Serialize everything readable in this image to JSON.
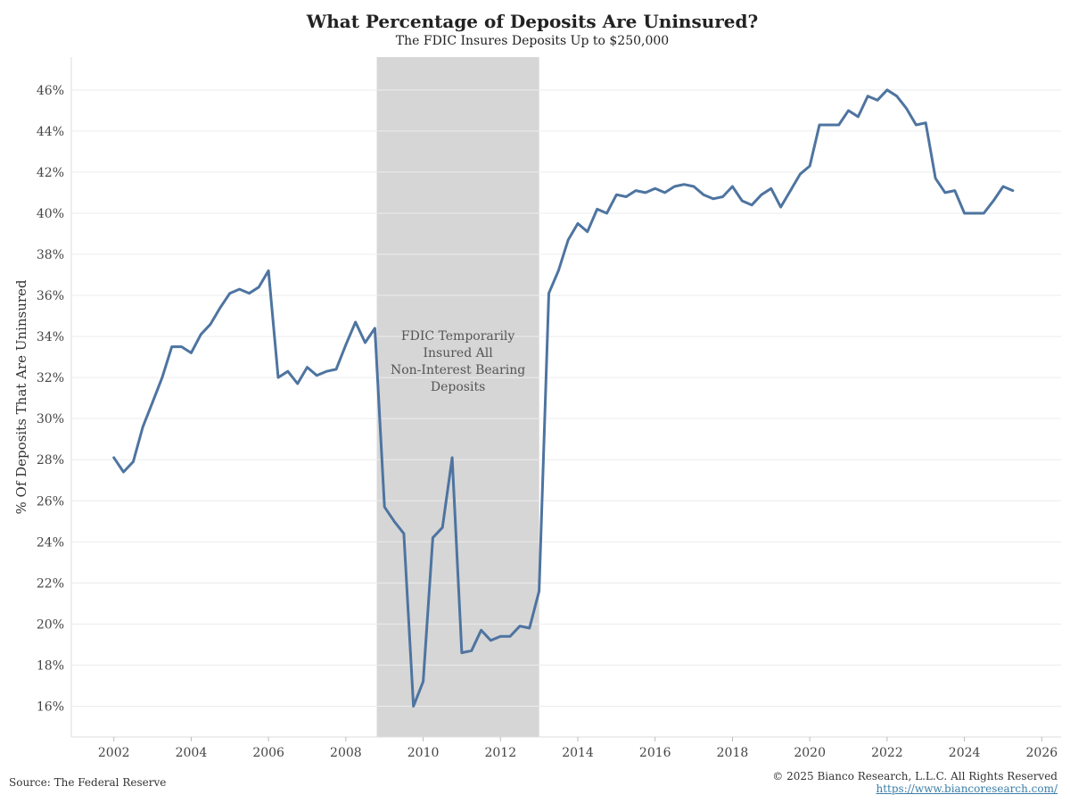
{
  "chart_data": {
    "type": "line",
    "title": "What Percentage of Deposits Are Uninsured?",
    "subtitle": "The FDIC Insures Deposits Up to $250,000",
    "ylabel": "% Of Deposits That Are Uninsured",
    "xlabel": "",
    "xlim": [
      2000.9,
      2026.5
    ],
    "ylim": [
      14.5,
      47.6
    ],
    "x_ticks": [
      2002,
      2004,
      2006,
      2008,
      2010,
      2012,
      2014,
      2016,
      2018,
      2020,
      2022,
      2024,
      2026
    ],
    "x_tick_labels": [
      "2002",
      "2004",
      "2006",
      "2008",
      "2010",
      "2012",
      "2014",
      "2016",
      "2018",
      "2020",
      "2022",
      "2024",
      "2026"
    ],
    "y_ticks": [
      16,
      18,
      20,
      22,
      24,
      26,
      28,
      30,
      32,
      34,
      36,
      38,
      40,
      42,
      44,
      46
    ],
    "y_tick_labels": [
      "16%",
      "18%",
      "20%",
      "22%",
      "24%",
      "26%",
      "28%",
      "30%",
      "32%",
      "34%",
      "36%",
      "38%",
      "40%",
      "42%",
      "44%",
      "46%"
    ],
    "grid": "horizontal",
    "line_color": "#4e74a0",
    "shade_color": "#d6d6d6",
    "shaded_region": {
      "x_start": 2008.8,
      "x_end": 2013.0,
      "label": [
        "FDIC Temporarily",
        "Insured All",
        "Non-Interest Bearing",
        "Deposits"
      ]
    },
    "series": [
      {
        "x": [
          2002.0,
          2002.25,
          2002.5,
          2002.75,
          2003.0,
          2003.25,
          2003.5,
          2003.75,
          2004.0,
          2004.25,
          2004.5,
          2004.75,
          2005.0,
          2005.25,
          2005.5,
          2005.75,
          2006.0,
          2006.25,
          2006.5,
          2006.75,
          2007.0,
          2007.25,
          2007.5,
          2007.75,
          2008.0,
          2008.25,
          2008.5,
          2008.75,
          2009.0,
          2009.25,
          2009.5,
          2009.75,
          2010.0,
          2010.25,
          2010.5,
          2010.75,
          2011.0,
          2011.25,
          2011.5,
          2011.75,
          2012.0,
          2012.25,
          2012.5,
          2012.75,
          2013.0,
          2013.25,
          2013.5,
          2013.75,
          2014.0,
          2014.25,
          2014.5,
          2014.75,
          2015.0,
          2015.25,
          2015.5,
          2015.75,
          2016.0,
          2016.25,
          2016.5,
          2016.75,
          2017.0,
          2017.25,
          2017.5,
          2017.75,
          2018.0,
          2018.25,
          2018.5,
          2018.75,
          2019.0,
          2019.25,
          2019.5,
          2019.75,
          2020.0,
          2020.25,
          2020.5,
          2020.75,
          2021.0,
          2021.25,
          2021.5,
          2021.75,
          2022.0,
          2022.25,
          2022.5,
          2022.75,
          2023.0,
          2023.25,
          2023.5,
          2023.75,
          2024.0,
          2024.25,
          2024.5,
          2024.75,
          2025.0,
          2025.25
        ],
        "y": [
          28.1,
          27.4,
          27.9,
          29.6,
          30.8,
          32.0,
          33.5,
          33.5,
          33.2,
          34.1,
          34.6,
          35.4,
          36.1,
          36.3,
          36.1,
          36.4,
          37.2,
          32.0,
          32.3,
          31.7,
          32.5,
          32.1,
          32.3,
          32.4,
          33.6,
          34.7,
          33.7,
          34.4,
          25.7,
          25.0,
          24.4,
          16.0,
          17.2,
          24.2,
          24.7,
          28.1,
          18.6,
          18.7,
          19.7,
          19.2,
          19.4,
          19.4,
          19.9,
          19.8,
          21.6,
          36.1,
          37.2,
          38.7,
          39.5,
          39.1,
          40.2,
          40.0,
          40.9,
          40.8,
          41.1,
          41.0,
          41.2,
          41.0,
          41.3,
          41.4,
          41.3,
          40.9,
          40.7,
          40.8,
          41.3,
          40.6,
          40.4,
          40.9,
          41.2,
          40.3,
          41.1,
          41.9,
          42.3,
          44.3,
          44.3,
          44.3,
          45.0,
          44.7,
          45.7,
          45.5,
          46.0,
          45.7,
          45.1,
          44.3,
          44.4,
          41.7,
          41.0,
          41.1,
          40.0,
          40.0,
          40.0,
          40.6,
          41.3,
          41.1
        ]
      }
    ]
  },
  "footer": {
    "source": "Source: The Federal Reserve",
    "copyright": "© 2025 Bianco Research, L.L.C. All Rights Reserved",
    "url": "https://www.biancoresearch.com/"
  }
}
